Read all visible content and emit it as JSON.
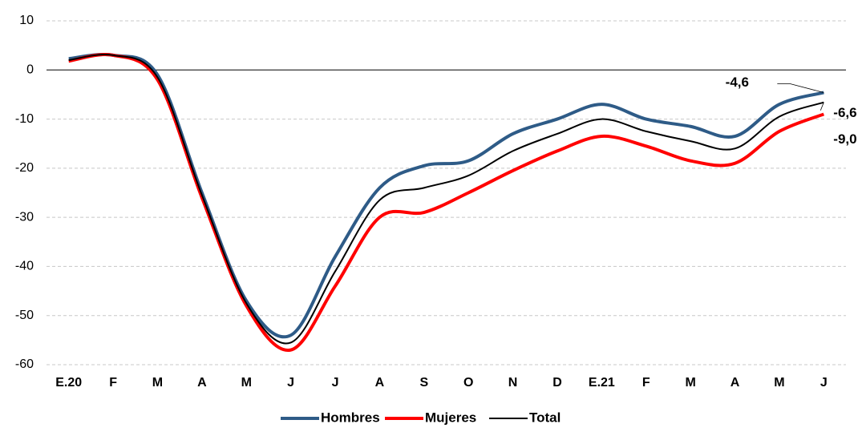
{
  "chart_data": {
    "type": "line",
    "categories": [
      "E.20",
      "F",
      "M",
      "A",
      "M",
      "J",
      "J",
      "A",
      "S",
      "O",
      "N",
      "D",
      "E.21",
      "F",
      "M",
      "A",
      "M",
      "J"
    ],
    "series": [
      {
        "name": "Hombres",
        "color": "#2e5b87",
        "width": 4,
        "values": [
          2.3,
          3,
          -1,
          -25,
          -47,
          -54,
          -38,
          -24,
          -19.5,
          -18.5,
          -13,
          -10,
          -7,
          -10,
          -11.5,
          -13.5,
          -7,
          -4.6
        ],
        "value_labels": [
          null,
          null,
          null,
          null,
          null,
          null,
          null,
          null,
          null,
          null,
          null,
          null,
          null,
          null,
          null,
          null,
          null,
          "-4,6"
        ]
      },
      {
        "name": "Mujeres",
        "color": "#ff0000",
        "width": 4,
        "values": [
          1.8,
          3,
          -2,
          -26,
          -48,
          -57,
          -44,
          -30,
          -29,
          -25,
          -20.5,
          -16.5,
          -13.5,
          -15.5,
          -18.5,
          -19,
          -12.5,
          -9.0
        ],
        "value_labels": [
          null,
          null,
          null,
          null,
          null,
          null,
          null,
          null,
          null,
          null,
          null,
          null,
          null,
          null,
          null,
          null,
          null,
          "-9,0"
        ]
      },
      {
        "name": "Total",
        "color": "#000000",
        "width": 2,
        "values": [
          2,
          3,
          -1.5,
          -25.5,
          -47.5,
          -55.5,
          -41,
          -26.5,
          -24,
          -21.5,
          -16.5,
          -13,
          -10,
          -12.5,
          -14.5,
          -16,
          -9.5,
          -6.6
        ],
        "value_labels": [
          null,
          null,
          null,
          null,
          null,
          null,
          null,
          null,
          null,
          null,
          null,
          null,
          null,
          null,
          null,
          null,
          null,
          "-6,6"
        ]
      }
    ],
    "ylim": [
      -60,
      10
    ],
    "yticks": [
      -60,
      -50,
      -40,
      -30,
      -20,
      -10,
      0,
      10
    ],
    "grid": true
  }
}
